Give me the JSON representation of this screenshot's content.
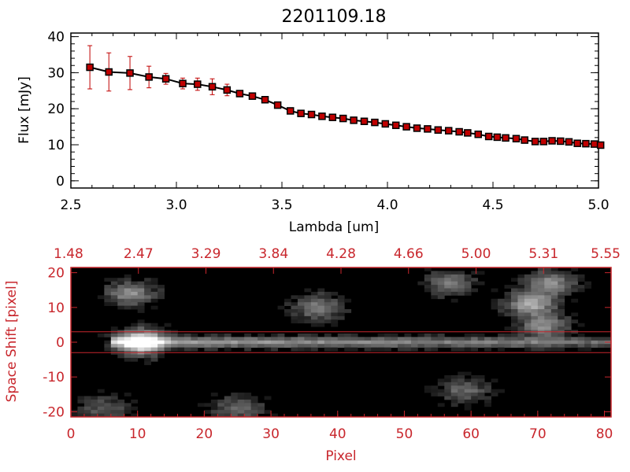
{
  "chart_data": [
    {
      "type": "line",
      "title": "2201109.18",
      "xlabel": "Lambda [um]",
      "ylabel": "Flux [mJy]",
      "xlim": [
        2.5,
        5.0
      ],
      "ylim": [
        -2,
        41
      ],
      "xticks": [
        "2.5",
        "3.0",
        "3.5",
        "4.0",
        "4.5",
        "5.0"
      ],
      "yticks": [
        "0",
        "10",
        "20",
        "30",
        "40"
      ],
      "line_color": "#000000",
      "marker_color": "#c00000",
      "errorbar_color": "#c00000",
      "series": [
        {
          "x": [
            2.59,
            2.68,
            2.78,
            2.87,
            2.95,
            3.03,
            3.1,
            3.17,
            3.24,
            3.3,
            3.36,
            3.42,
            3.48,
            3.54,
            3.59,
            3.64,
            3.69,
            3.74,
            3.79,
            3.84,
            3.89,
            3.94,
            3.99,
            4.04,
            4.09,
            4.14,
            4.19,
            4.24,
            4.29,
            4.34,
            4.38,
            4.43,
            4.48,
            4.52,
            4.56,
            4.61,
            4.65,
            4.7,
            4.74,
            4.78,
            4.82,
            4.86,
            4.9,
            4.94,
            4.98,
            5.01
          ],
          "y": [
            31.5,
            30.2,
            29.9,
            28.8,
            28.3,
            27.0,
            26.8,
            26.1,
            25.2,
            24.2,
            23.5,
            22.5,
            21.0,
            19.4,
            18.7,
            18.4,
            17.9,
            17.6,
            17.3,
            16.8,
            16.5,
            16.2,
            15.8,
            15.4,
            15.0,
            14.6,
            14.4,
            14.1,
            13.9,
            13.6,
            13.3,
            12.9,
            12.3,
            12.1,
            11.9,
            11.7,
            11.3,
            10.9,
            10.9,
            11.1,
            11.0,
            10.8,
            10.4,
            10.3,
            10.2,
            9.9
          ],
          "yerr": [
            6.0,
            5.3,
            4.6,
            3.0,
            1.5,
            1.5,
            1.7,
            2.2,
            1.6,
            0.7,
            0.4,
            0.4,
            0.4,
            0.4,
            0.4,
            0.4,
            0.4,
            0.4,
            0.4,
            0.4,
            0.4,
            0.4,
            0.4,
            0.4,
            0.4,
            0.4,
            0.4,
            0.4,
            0.4,
            0.4,
            0.4,
            0.4,
            0.4,
            0.4,
            0.4,
            0.4,
            0.4,
            0.4,
            0.4,
            0.4,
            0.4,
            0.4,
            0.4,
            0.4,
            0.4,
            0.4
          ]
        }
      ],
      "grid": false
    },
    {
      "type": "heatmap",
      "xlabel": "Pixel",
      "ylabel": "Space Shift [pixel]",
      "xlim": [
        0,
        81
      ],
      "ylim": [
        -21.5,
        21.5
      ],
      "xticks": [
        "0",
        "10",
        "20",
        "30",
        "40",
        "50",
        "60",
        "70",
        "80"
      ],
      "yticks": [
        "-20",
        "-10",
        "0",
        "10",
        "20"
      ],
      "top_axis_ticks": [
        "1.48",
        "2.47",
        "3.29",
        "3.84",
        "4.28",
        "4.66",
        "5.00",
        "5.31",
        "5.55"
      ],
      "aperture_lines_y": [
        3,
        -3
      ],
      "colormap": "grayscale",
      "accent_color": "#c8262c",
      "blobs": [
        {
          "x": 10.5,
          "y": 0.0,
          "amp": 1.0
        },
        {
          "x": 9.0,
          "y": 14.0,
          "amp": 0.45
        },
        {
          "x": 37.0,
          "y": 10.0,
          "amp": 0.4
        },
        {
          "x": 57.0,
          "y": 17.0,
          "amp": 0.35
        },
        {
          "x": 69.0,
          "y": 11.0,
          "amp": 0.6
        },
        {
          "x": 72.0,
          "y": 17.0,
          "amp": 0.45
        },
        {
          "x": 71.0,
          "y": 4.5,
          "amp": 0.45
        },
        {
          "x": 59.0,
          "y": -14.0,
          "amp": 0.3
        },
        {
          "x": 25.0,
          "y": -19.0,
          "amp": 0.3
        },
        {
          "x": 5.0,
          "y": -19.0,
          "amp": 0.25
        }
      ],
      "trace": {
        "y": 0.0,
        "x_start": 6,
        "x_end": 81
      }
    }
  ]
}
